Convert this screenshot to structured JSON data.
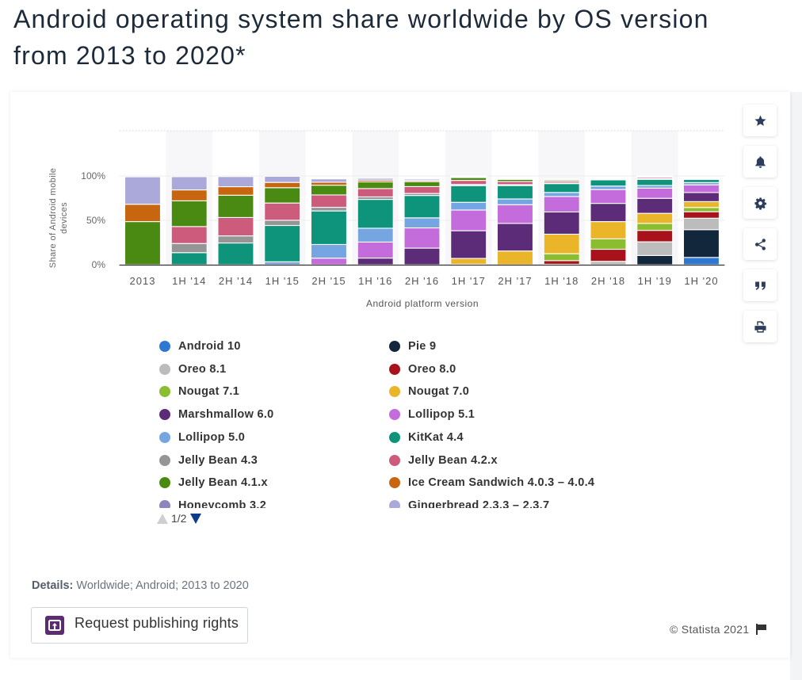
{
  "page": {
    "title": "Android operating system share worldwide by OS version from 2013 to 2020*"
  },
  "toolbar": {
    "icons": [
      "star-icon",
      "bell-icon",
      "gear-icon",
      "share-icon",
      "quote-icon",
      "print-icon"
    ]
  },
  "legend": {
    "pagination": "1/2"
  },
  "details": {
    "label": "Details:",
    "text": " Worldwide; Android; 2013 to 2020"
  },
  "publish_button": {
    "label": "Request publishing rights"
  },
  "footer": {
    "copyright": "© Statista 2021"
  },
  "chart_data": {
    "type": "bar",
    "stacked": true,
    "title": "Android operating system share worldwide by OS version from 2013 to 2020*",
    "xlabel": "Android platform version",
    "ylabel": "Share of Android mobile devices",
    "ylabel_lines": [
      "Share of Android mobile",
      "devices"
    ],
    "ylim": [
      0,
      100
    ],
    "yticks": [
      {
        "value": 0,
        "label": "0%"
      },
      {
        "value": 50,
        "label": "50%"
      },
      {
        "value": 100,
        "label": "100%"
      }
    ],
    "grid": true,
    "legend_position": "bottom",
    "categories": [
      "2013",
      "1H '14",
      "2H '14",
      "1H '15",
      "2H '15",
      "1H '16",
      "2H '16",
      "1H '17",
      "2H '17",
      "1H '18",
      "2H '18",
      "1H '19",
      "1H '20"
    ],
    "series": [
      {
        "name": "Android 10",
        "color": "#2f78d2",
        "values": [
          0,
          0,
          0,
          0,
          0,
          0,
          0,
          0,
          0,
          0,
          0,
          0,
          8.2
        ]
      },
      {
        "name": "Pie 9",
        "color": "#12263c",
        "values": [
          0,
          0,
          0,
          0,
          0,
          0,
          0,
          0,
          0,
          0,
          0,
          10.4,
          31.3
        ]
      },
      {
        "name": "Oreo 8.1",
        "color": "#bcbcbc",
        "values": [
          0,
          0,
          0,
          0,
          0,
          0,
          0,
          0,
          0,
          0.5,
          3.8,
          15.4,
          12.9
        ]
      },
      {
        "name": "Oreo 8.0",
        "color": "#a8121a",
        "values": [
          0,
          0,
          0,
          0,
          0,
          0,
          0,
          0,
          0,
          4.1,
          13.6,
          12.9,
          7.3
        ]
      },
      {
        "name": "Nougat 7.1",
        "color": "#8abd2f",
        "values": [
          0,
          0,
          0,
          0,
          0,
          0,
          0,
          0.5,
          0,
          7.8,
          11.7,
          7.8,
          4.8
        ]
      },
      {
        "name": "Nougat 7.0",
        "color": "#ebb52a",
        "values": [
          0,
          0,
          0,
          0,
          0,
          0,
          0,
          6.6,
          15.5,
          22.0,
          19.5,
          11.4,
          6.6
        ]
      },
      {
        "name": "Marshmallow 6.0",
        "color": "#5c2c78",
        "values": [
          0,
          0,
          0,
          0,
          0,
          7.5,
          18.7,
          31.2,
          31.0,
          25.0,
          20.5,
          16.9,
          10.2
        ]
      },
      {
        "name": "Lollipop 5.1",
        "color": "#c46cdc",
        "values": [
          0,
          0,
          0,
          0,
          7.4,
          18.0,
          22.8,
          23.3,
          21.1,
          17.5,
          15.6,
          11.5,
          8.7
        ]
      },
      {
        "name": "Lollipop 5.0",
        "color": "#76a6e2",
        "values": [
          0,
          0,
          0,
          3.3,
          15.4,
          15.6,
          11.3,
          8.7,
          6.5,
          4.5,
          3.9,
          3.0,
          2.6
        ]
      },
      {
        "name": "KitKat 4.4",
        "color": "#0e947a",
        "values": [
          0,
          13.6,
          24.5,
          40.9,
          37.8,
          32.5,
          25.2,
          18.8,
          15.1,
          10.0,
          7.1,
          6.9,
          3.5
        ]
      },
      {
        "name": "Jelly Bean 4.3",
        "color": "#959595",
        "values": [
          0,
          10.3,
          8.0,
          5.9,
          4.1,
          2.8,
          2.3,
          1.3,
          1.0,
          0.6,
          0.3,
          0.6,
          0.3
        ]
      },
      {
        "name": "Jelly Bean 4.2.x",
        "color": "#cc5b7c",
        "values": [
          0,
          19.1,
          20.7,
          19.4,
          13.9,
          9.4,
          7.7,
          4.6,
          3.5,
          2.0,
          1.0,
          1.5,
          0.8
        ]
      },
      {
        "name": "Jelly Bean 4.1.x",
        "color": "#4b8a12",
        "values": [
          48.6,
          29.0,
          25.1,
          17.3,
          11.0,
          7.5,
          5.6,
          3.2,
          2.4,
          1.5,
          0.6,
          1.1,
          0.6
        ]
      },
      {
        "name": "Ice Cream Sandwich 4.0.3 – 4.0.4",
        "color": "#c8650f",
        "values": [
          19.5,
          12.3,
          9.6,
          5.9,
          3.3,
          2.0,
          1.4,
          0.8,
          0.6,
          0.4,
          0.3,
          0.3,
          0.2
        ]
      },
      {
        "name": "Honeycomb 3.2",
        "color": "#8f84bd",
        "values": [
          0,
          0,
          0,
          0,
          0,
          0,
          0,
          0,
          0,
          0,
          0,
          0,
          0
        ]
      },
      {
        "name": "Gingerbread 2.3.3 – 2.3.7",
        "color": "#aba9da",
        "values": [
          30.9,
          14.9,
          11.4,
          6.9,
          3.8,
          2.1,
          1.5,
          1.0,
          0.6,
          0.3,
          0.2,
          0.3,
          0.2
        ]
      }
    ]
  }
}
